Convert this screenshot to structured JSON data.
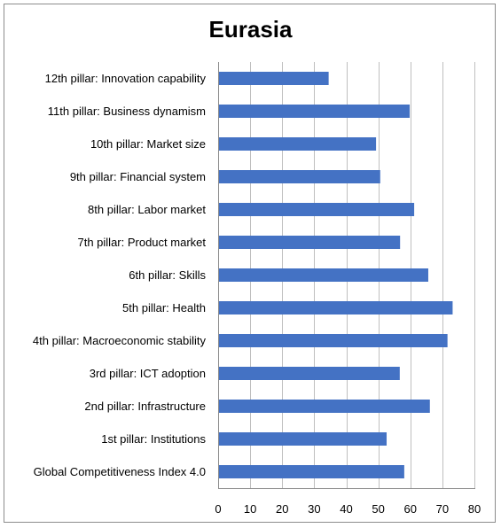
{
  "chart_data": {
    "type": "bar",
    "orientation": "horizontal",
    "title": "Eurasia",
    "xlabel": "",
    "ylabel": "",
    "xlim": [
      0,
      80
    ],
    "xticks": [
      0,
      10,
      20,
      30,
      40,
      50,
      60,
      70,
      80
    ],
    "grid": "vertical",
    "legend": "none",
    "bar_color": "#4472C4",
    "categories": [
      "12th pillar: Innovation capability",
      "11th pillar: Business dynamism",
      "10th pillar: Market size",
      "9th pillar: Financial system",
      "8th pillar: Labor market",
      "7th pillar: Product market",
      "6th pillar: Skills",
      "5th pillar: Health",
      "4th pillar: Macroeconomic stability",
      "3rd pillar: ICT adoption",
      "2nd pillar: Infrastructure",
      "1st pillar: Institutions",
      "Global Competitiveness Index 4.0"
    ],
    "values": [
      34.5,
      59.8,
      49.3,
      50.6,
      61.2,
      56.8,
      65.6,
      73.2,
      71.6,
      56.7,
      66.1,
      52.6,
      58.1
    ]
  }
}
